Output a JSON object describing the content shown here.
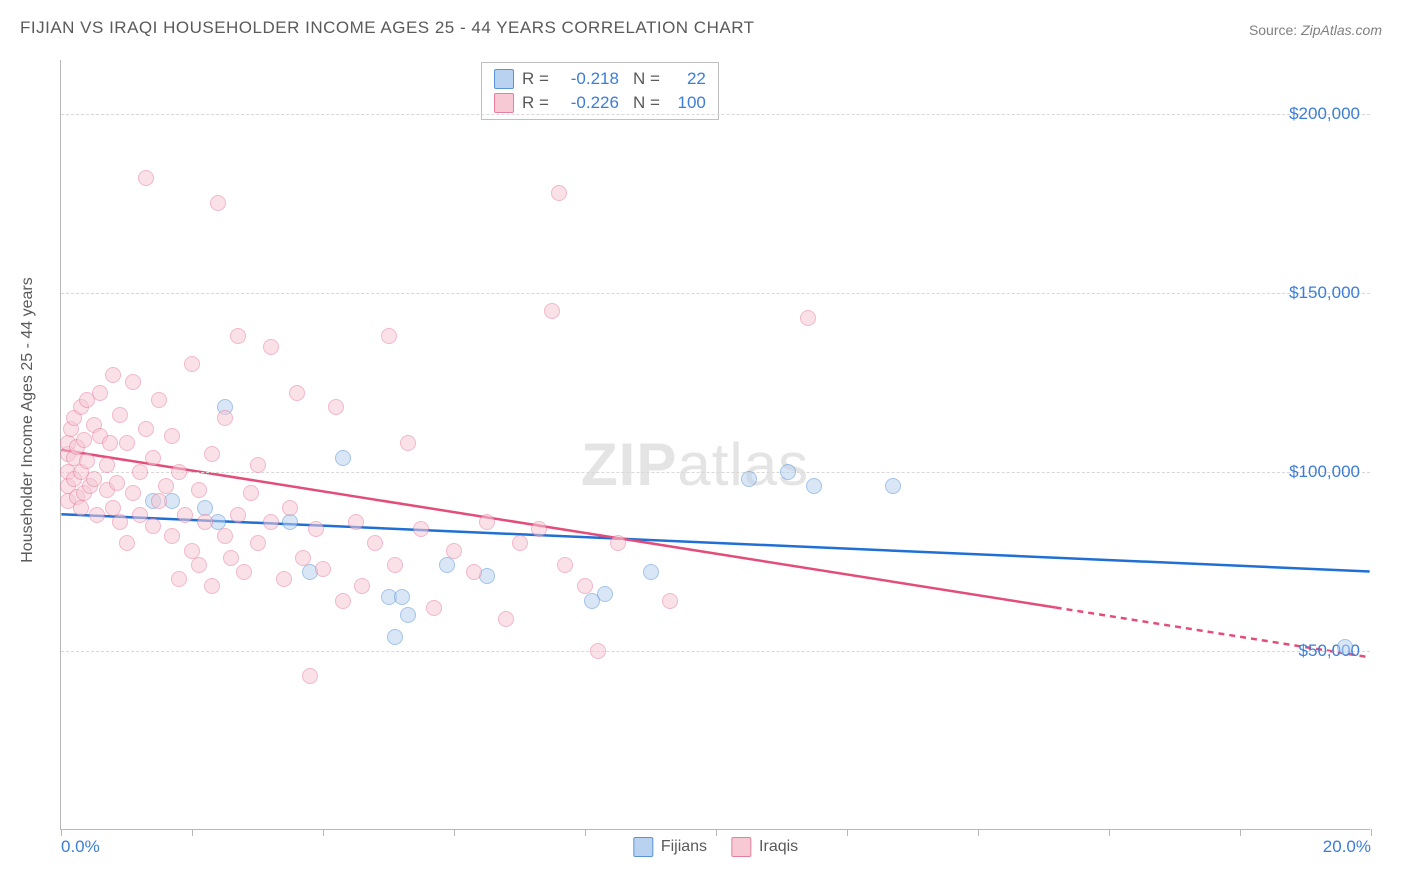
{
  "title": "FIJIAN VS IRAQI HOUSEHOLDER INCOME AGES 25 - 44 YEARS CORRELATION CHART",
  "source_label": "Source: ",
  "source_value": "ZipAtlas.com",
  "ylabel": "Householder Income Ages 25 - 44 years",
  "watermark_a": "ZIP",
  "watermark_b": "atlas",
  "chart": {
    "type": "scatter",
    "background_color": "#ffffff",
    "grid_color": "#d8d8d8",
    "axis_color": "#b8b8b8",
    "label_color": "#3b7dd8",
    "text_color": "#5a5a5a",
    "marker_size": 16,
    "marker_opacity": 0.55,
    "line_width": 2.5,
    "xlim": [
      0,
      20
    ],
    "ylim": [
      0,
      215000
    ],
    "yticks": [
      50000,
      100000,
      150000,
      200000
    ],
    "ytick_labels": [
      "$50,000",
      "$100,000",
      "$150,000",
      "$200,000"
    ],
    "xticks": [
      0,
      2,
      4,
      6,
      8,
      10,
      12,
      14,
      16,
      18,
      20
    ],
    "xtick_labels_shown": {
      "0": "0.0%",
      "20": "20.0%"
    },
    "series": [
      {
        "name": "Fijians",
        "marker_fill": "#b9d2f0",
        "marker_stroke": "#5b94d6",
        "line_color": "#1f6fd4",
        "r": -0.218,
        "n": 22,
        "trend": {
          "x1": 0,
          "y1": 88000,
          "x2": 20,
          "y2": 72000,
          "dashed_after_x": null
        },
        "points": [
          [
            1.4,
            92000
          ],
          [
            1.7,
            92000
          ],
          [
            2.2,
            90000
          ],
          [
            2.4,
            86000
          ],
          [
            2.5,
            118000
          ],
          [
            3.5,
            86000
          ],
          [
            3.8,
            72000
          ],
          [
            4.3,
            104000
          ],
          [
            5.0,
            65000
          ],
          [
            5.1,
            54000
          ],
          [
            5.2,
            65000
          ],
          [
            5.3,
            60000
          ],
          [
            5.9,
            74000
          ],
          [
            6.5,
            71000
          ],
          [
            8.1,
            64000
          ],
          [
            8.3,
            66000
          ],
          [
            9.0,
            72000
          ],
          [
            10.5,
            98000
          ],
          [
            11.1,
            100000
          ],
          [
            11.5,
            96000
          ],
          [
            12.7,
            96000
          ],
          [
            19.6,
            51000
          ]
        ]
      },
      {
        "name": "Iraqis",
        "marker_fill": "#f6c9d5",
        "marker_stroke": "#e77ea0",
        "line_color": "#e24d7a",
        "r": -0.226,
        "n": 100,
        "trend": {
          "x1": 0,
          "y1": 106000,
          "x2": 20,
          "y2": 48000,
          "dashed_after_x": 15.2
        },
        "points": [
          [
            0.1,
            105000
          ],
          [
            0.1,
            100000
          ],
          [
            0.1,
            96000
          ],
          [
            0.1,
            108000
          ],
          [
            0.1,
            92000
          ],
          [
            0.15,
            112000
          ],
          [
            0.2,
            104000
          ],
          [
            0.2,
            98000
          ],
          [
            0.2,
            115000
          ],
          [
            0.25,
            93000
          ],
          [
            0.25,
            107000
          ],
          [
            0.3,
            100000
          ],
          [
            0.3,
            118000
          ],
          [
            0.3,
            90000
          ],
          [
            0.35,
            94000
          ],
          [
            0.35,
            109000
          ],
          [
            0.4,
            103000
          ],
          [
            0.4,
            120000
          ],
          [
            0.45,
            96000
          ],
          [
            0.5,
            113000
          ],
          [
            0.5,
            98000
          ],
          [
            0.55,
            88000
          ],
          [
            0.6,
            110000
          ],
          [
            0.6,
            122000
          ],
          [
            0.7,
            95000
          ],
          [
            0.7,
            102000
          ],
          [
            0.75,
            108000
          ],
          [
            0.8,
            127000
          ],
          [
            0.8,
            90000
          ],
          [
            0.85,
            97000
          ],
          [
            0.9,
            116000
          ],
          [
            0.9,
            86000
          ],
          [
            1.0,
            108000
          ],
          [
            1.0,
            80000
          ],
          [
            1.1,
            94000
          ],
          [
            1.1,
            125000
          ],
          [
            1.2,
            100000
          ],
          [
            1.2,
            88000
          ],
          [
            1.3,
            112000
          ],
          [
            1.3,
            182000
          ],
          [
            1.4,
            85000
          ],
          [
            1.4,
            104000
          ],
          [
            1.5,
            92000
          ],
          [
            1.5,
            120000
          ],
          [
            1.6,
            96000
          ],
          [
            1.7,
            82000
          ],
          [
            1.7,
            110000
          ],
          [
            1.8,
            70000
          ],
          [
            1.8,
            100000
          ],
          [
            1.9,
            88000
          ],
          [
            2.0,
            130000
          ],
          [
            2.0,
            78000
          ],
          [
            2.1,
            74000
          ],
          [
            2.1,
            95000
          ],
          [
            2.2,
            86000
          ],
          [
            2.3,
            105000
          ],
          [
            2.3,
            68000
          ],
          [
            2.4,
            175000
          ],
          [
            2.5,
            82000
          ],
          [
            2.5,
            115000
          ],
          [
            2.6,
            76000
          ],
          [
            2.7,
            88000
          ],
          [
            2.7,
            138000
          ],
          [
            2.8,
            72000
          ],
          [
            2.9,
            94000
          ],
          [
            3.0,
            80000
          ],
          [
            3.0,
            102000
          ],
          [
            3.2,
            86000
          ],
          [
            3.2,
            135000
          ],
          [
            3.4,
            70000
          ],
          [
            3.5,
            90000
          ],
          [
            3.6,
            122000
          ],
          [
            3.7,
            76000
          ],
          [
            3.8,
            43000
          ],
          [
            3.9,
            84000
          ],
          [
            4.0,
            73000
          ],
          [
            4.2,
            118000
          ],
          [
            4.3,
            64000
          ],
          [
            4.5,
            86000
          ],
          [
            4.6,
            68000
          ],
          [
            4.8,
            80000
          ],
          [
            5.0,
            138000
          ],
          [
            5.1,
            74000
          ],
          [
            5.3,
            108000
          ],
          [
            5.5,
            84000
          ],
          [
            5.7,
            62000
          ],
          [
            6.0,
            78000
          ],
          [
            6.3,
            72000
          ],
          [
            6.5,
            86000
          ],
          [
            6.8,
            59000
          ],
          [
            7.0,
            80000
          ],
          [
            7.3,
            84000
          ],
          [
            7.5,
            145000
          ],
          [
            7.7,
            74000
          ],
          [
            8.0,
            68000
          ],
          [
            8.2,
            50000
          ],
          [
            8.5,
            80000
          ],
          [
            9.3,
            64000
          ],
          [
            11.4,
            143000
          ],
          [
            7.6,
            178000
          ]
        ]
      }
    ],
    "legend_corr": {
      "r_label": "R =",
      "n_label": "N ="
    },
    "legend_bottom_labels": [
      "Fijians",
      "Iraqis"
    ]
  }
}
